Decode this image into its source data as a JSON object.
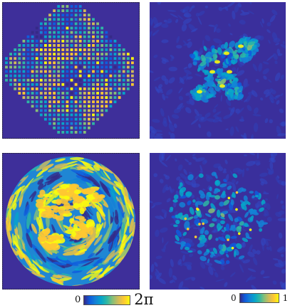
{
  "figure": {
    "colormap_name": "parula",
    "colormap": [
      "#352a87",
      "#0f5cdd",
      "#1481d6",
      "#06a4ca",
      "#2eb7a4",
      "#87bf77",
      "#d1bb59",
      "#fec832",
      "#f9fb0e"
    ],
    "background_color": "#3e2f9a"
  },
  "panels": [
    {
      "id": "top-left",
      "content": "sampled-phase-dot-grid",
      "aperture": "octagon"
    },
    {
      "id": "top-right",
      "content": "reconstruction-amplitude-speckle"
    },
    {
      "id": "bottom-left",
      "content": "phase-map-circular-aperture",
      "aperture": "circle"
    },
    {
      "id": "bottom-right",
      "content": "reconstruction-amplitude-speckle"
    }
  ],
  "colorbars": {
    "phase": {
      "min_label": "0",
      "max_label": "2π"
    },
    "amplitude": {
      "min_label": "0",
      "max_label": "1"
    }
  }
}
